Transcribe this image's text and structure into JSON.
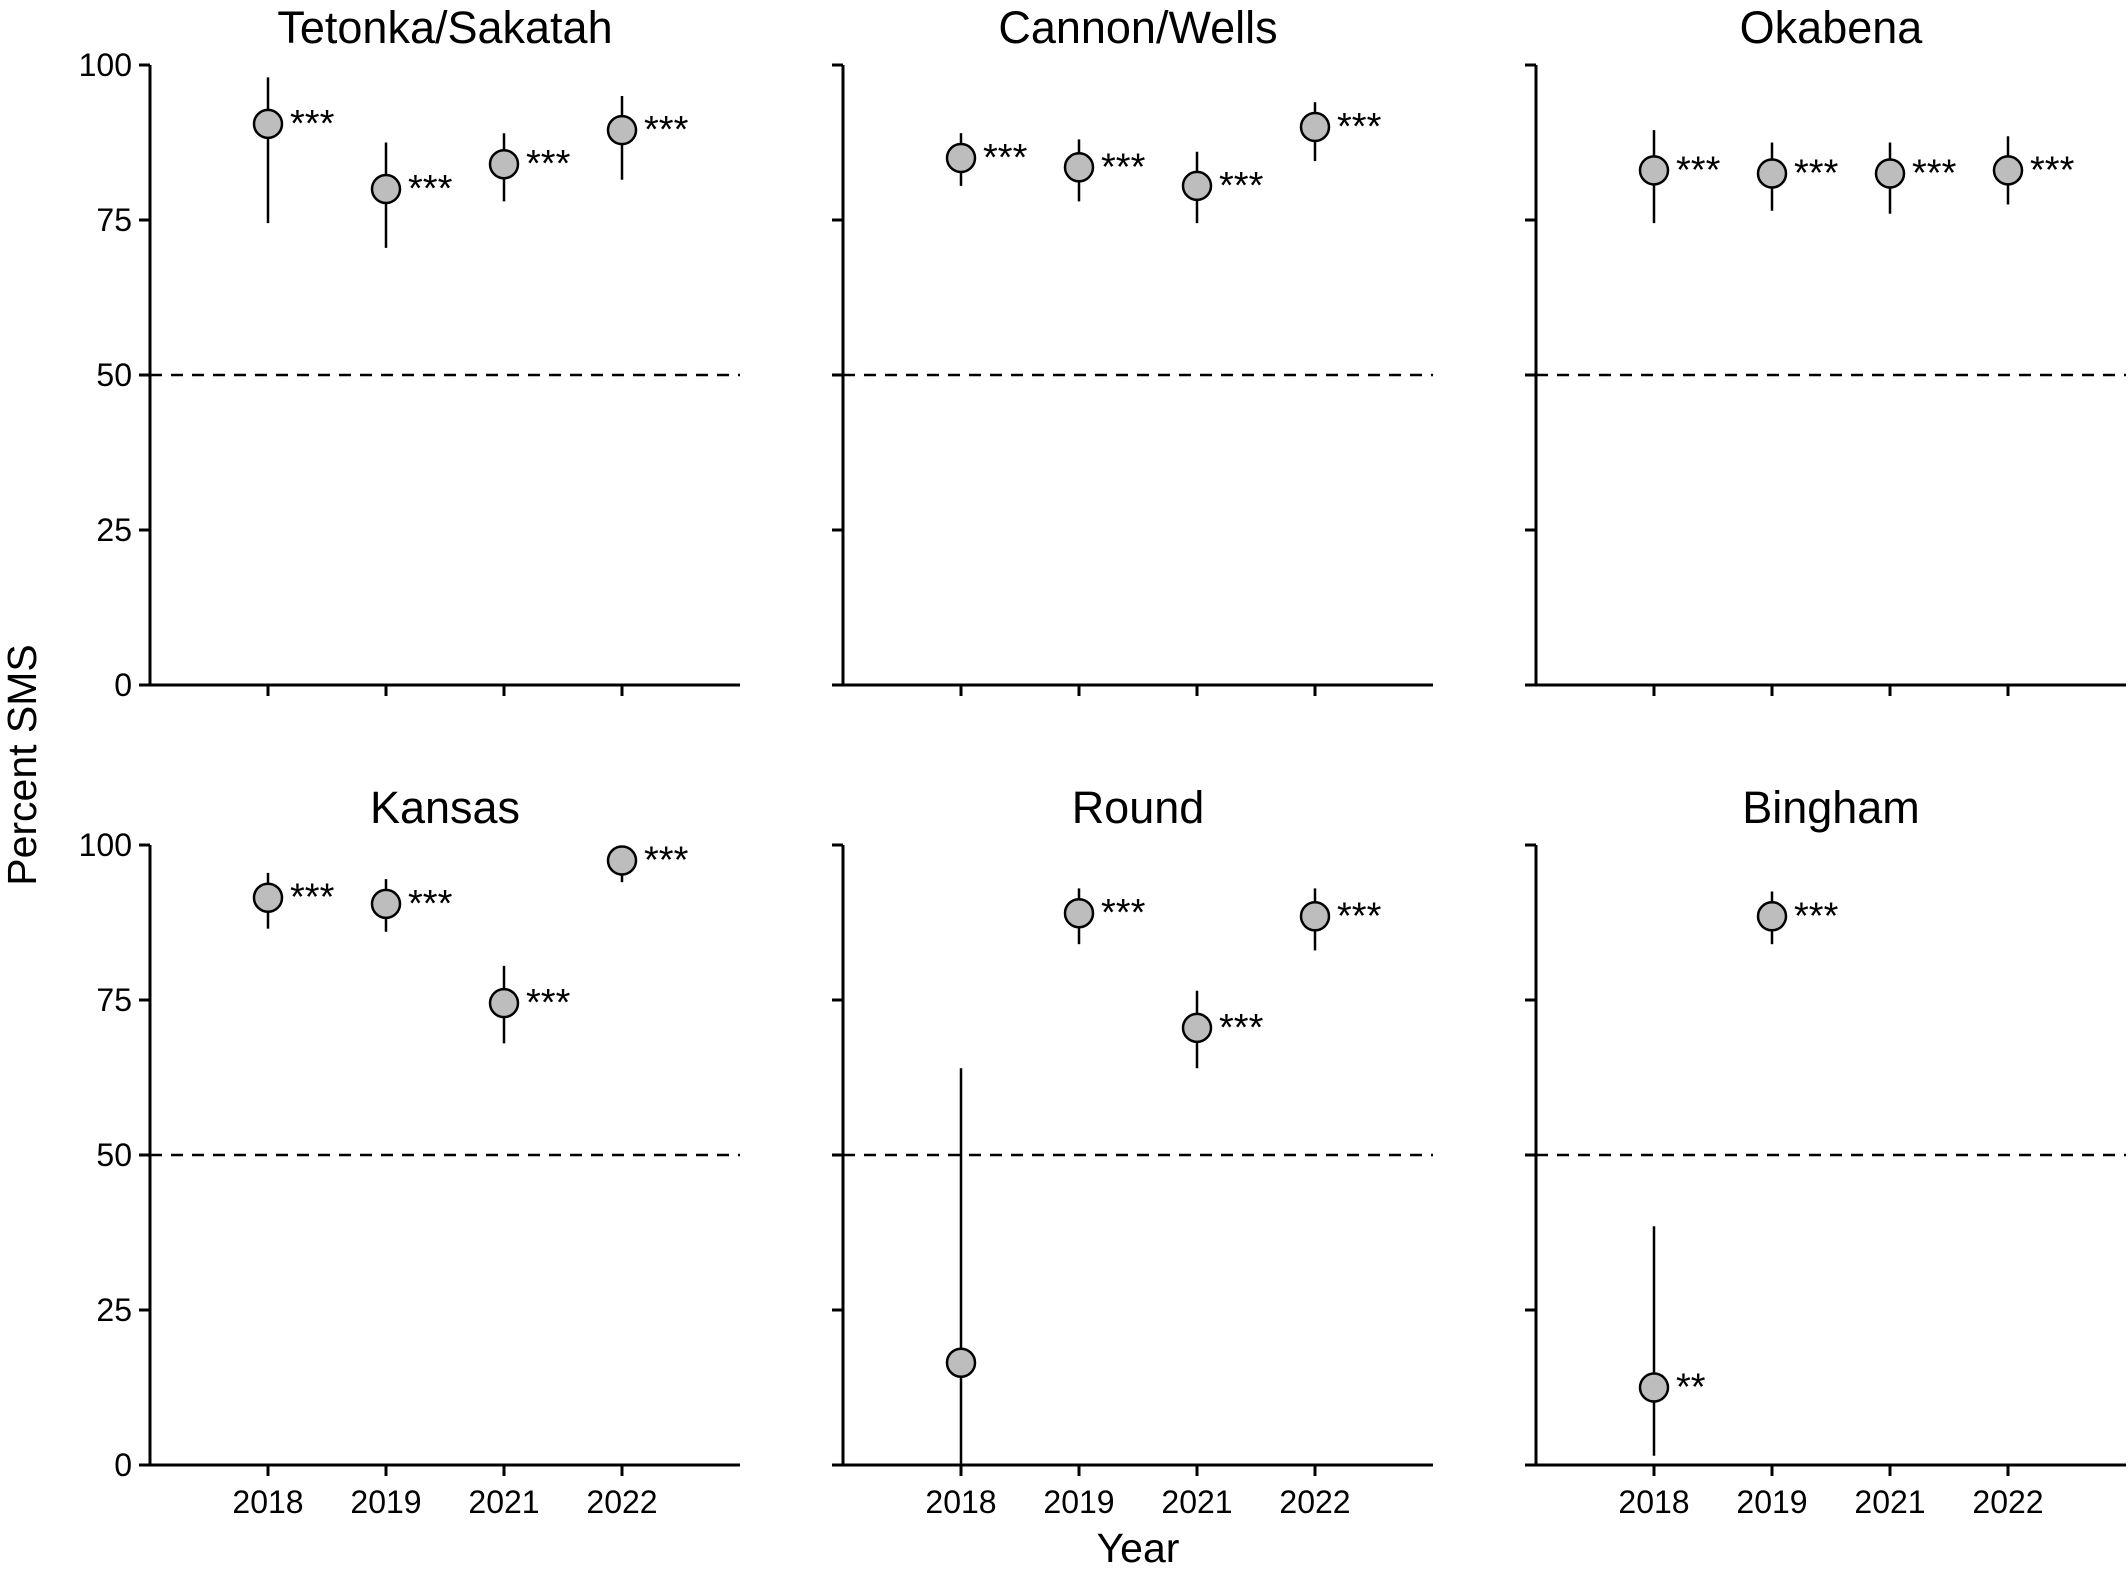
{
  "chart_data": {
    "type": "scatter",
    "x_categories": [
      "2018",
      "2019",
      "2021",
      "2022"
    ],
    "xlabel": "Year",
    "ylabel": "Percent SMS",
    "ylim": [
      0,
      100
    ],
    "yticks": [
      0,
      25,
      50,
      75,
      100
    ],
    "reference_line": 50,
    "point_fill": "#bdbdbd",
    "layout": "2 rows x 3 columns, shared axes",
    "panels": [
      {
        "title": "Tetonka/Sakatah",
        "points": [
          {
            "x": "2018",
            "y": 90.5,
            "lo": 74.5,
            "hi": 98,
            "sig": "***"
          },
          {
            "x": "2019",
            "y": 80,
            "lo": 70.5,
            "hi": 87.5,
            "sig": "***"
          },
          {
            "x": "2021",
            "y": 84,
            "lo": 78,
            "hi": 89,
            "sig": "***"
          },
          {
            "x": "2022",
            "y": 89.5,
            "lo": 81.5,
            "hi": 95,
            "sig": "***"
          }
        ]
      },
      {
        "title": "Cannon/Wells",
        "points": [
          {
            "x": "2018",
            "y": 85,
            "lo": 80.5,
            "hi": 89,
            "sig": "***"
          },
          {
            "x": "2019",
            "y": 83.5,
            "lo": 78,
            "hi": 88,
            "sig": "***"
          },
          {
            "x": "2021",
            "y": 80.5,
            "lo": 74.5,
            "hi": 86,
            "sig": "***"
          },
          {
            "x": "2022",
            "y": 90,
            "lo": 84.5,
            "hi": 94,
            "sig": "***"
          }
        ]
      },
      {
        "title": "Okabena",
        "points": [
          {
            "x": "2018",
            "y": 83,
            "lo": 74.5,
            "hi": 89.5,
            "sig": "***"
          },
          {
            "x": "2019",
            "y": 82.5,
            "lo": 76.5,
            "hi": 87.5,
            "sig": "***"
          },
          {
            "x": "2021",
            "y": 82.5,
            "lo": 76,
            "hi": 87.5,
            "sig": "***"
          },
          {
            "x": "2022",
            "y": 83,
            "lo": 77.5,
            "hi": 88.5,
            "sig": "***"
          }
        ]
      },
      {
        "title": "Kansas",
        "points": [
          {
            "x": "2018",
            "y": 91.5,
            "lo": 86.5,
            "hi": 95.5,
            "sig": "***"
          },
          {
            "x": "2019",
            "y": 90.5,
            "lo": 86,
            "hi": 94.5,
            "sig": "***"
          },
          {
            "x": "2021",
            "y": 74.5,
            "lo": 68,
            "hi": 80.5,
            "sig": "***"
          },
          {
            "x": "2022",
            "y": 97.5,
            "lo": 94,
            "hi": 99.5,
            "sig": "***"
          }
        ]
      },
      {
        "title": "Round",
        "points": [
          {
            "x": "2018",
            "y": 16.5,
            "lo": 0,
            "hi": 64,
            "sig": ""
          },
          {
            "x": "2019",
            "y": 89,
            "lo": 84,
            "hi": 93,
            "sig": "***"
          },
          {
            "x": "2021",
            "y": 70.5,
            "lo": 64,
            "hi": 76.5,
            "sig": "***"
          },
          {
            "x": "2022",
            "y": 88.5,
            "lo": 83,
            "hi": 93,
            "sig": "***"
          }
        ]
      },
      {
        "title": "Bingham",
        "points": [
          {
            "x": "2018",
            "y": 12.5,
            "lo": 1.5,
            "hi": 38.5,
            "sig": "**"
          },
          {
            "x": "2019",
            "y": 88.5,
            "lo": 84,
            "hi": 92.5,
            "sig": "***"
          }
        ]
      }
    ]
  }
}
